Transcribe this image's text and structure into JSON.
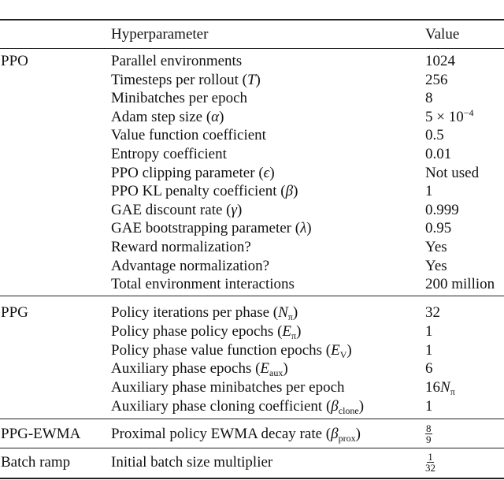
{
  "table": {
    "header": {
      "group": "",
      "param": "Hyperparameter",
      "value": "Value"
    },
    "sections": [
      {
        "group": "PPO",
        "rows": [
          {
            "name": "Parallel environments",
            "value": "1024"
          },
          {
            "name": "Timesteps per rollout",
            "sym": "T",
            "value": "256"
          },
          {
            "name": "Minibatches per epoch",
            "value": "8"
          },
          {
            "name": "Adam step size",
            "sym": "α",
            "value": "5 × 10",
            "value_sup": "−4"
          },
          {
            "name": "Value function coefficient",
            "value": "0.5"
          },
          {
            "name": "Entropy coefficient",
            "value": "0.01"
          },
          {
            "name": "PPO clipping parameter",
            "sym": "ϵ",
            "value": "Not used"
          },
          {
            "name": "PPO KL penalty coefficient",
            "sym": "β",
            "value": "1"
          },
          {
            "name": "GAE discount rate",
            "sym": "γ",
            "value": "0.999"
          },
          {
            "name": "GAE bootstrapping parameter",
            "sym": "λ",
            "value": "0.95"
          },
          {
            "name": "Reward normalization?",
            "value": "Yes"
          },
          {
            "name": "Advantage normalization?",
            "value": "Yes"
          },
          {
            "name": "Total environment interactions",
            "value": "200 million"
          }
        ]
      },
      {
        "group": "PPG",
        "rows": [
          {
            "name": "Policy iterations per phase",
            "sym": "N",
            "sub": "π",
            "value": "32"
          },
          {
            "name": "Policy phase policy epochs",
            "sym": "E",
            "sub": "π",
            "value": "1"
          },
          {
            "name": "Policy phase value function epochs",
            "sym": "E",
            "sub": "V",
            "value": "1"
          },
          {
            "name": "Auxiliary phase epochs",
            "sym": "E",
            "sub": "aux",
            "value": "6"
          },
          {
            "name": "Auxiliary phase minibatches per epoch",
            "value": "16",
            "value_sym": "N",
            "value_sub": "π"
          },
          {
            "name": "Auxiliary phase cloning coefficient",
            "sym": "β",
            "sub": "clone",
            "value": "1"
          }
        ]
      },
      {
        "group": "PPG-EWMA",
        "rows": [
          {
            "name": "Proximal policy EWMA decay rate",
            "sym": "β",
            "sub": "prox",
            "frac_num": "8",
            "frac_den": "9"
          }
        ]
      },
      {
        "group": "Batch ramp",
        "rows": [
          {
            "name": "Initial batch size multiplier",
            "frac_num": "1",
            "frac_den": "32"
          }
        ]
      }
    ]
  }
}
